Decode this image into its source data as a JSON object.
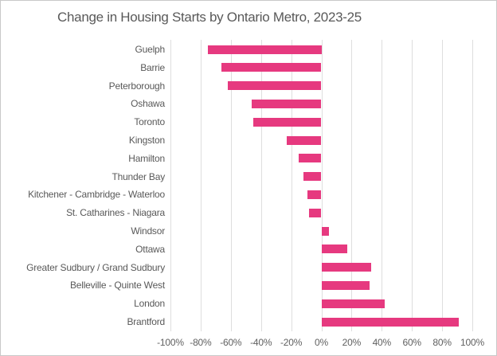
{
  "chart_data": {
    "type": "bar",
    "orientation": "horizontal",
    "title": "Change in Housing Starts by Ontario Metro, 2023-25",
    "categories": [
      "Guelph",
      "Barrie",
      "Peterborough",
      "Oshawa",
      "Toronto",
      "Kingston",
      "Hamilton",
      "Thunder Bay",
      "Kitchener - Cambridge - Waterloo",
      "St. Catharines - Niagara",
      "Windsor",
      "Ottawa",
      "Greater Sudbury / Grand Sudbury",
      "Belleville - Quinte West",
      "London",
      "Brantford"
    ],
    "values": [
      -75,
      -66,
      -62,
      -46,
      -45,
      -23,
      -15,
      -12,
      -9,
      -8,
      5,
      17,
      33,
      32,
      42,
      91
    ],
    "value_unit": "%",
    "xlabel": "",
    "ylabel": "",
    "xlim": [
      -100,
      100
    ],
    "x_tick_step": 20,
    "x_tick_labels": [
      "-100%",
      "-80%",
      "-60%",
      "-40%",
      "-20%",
      "0%",
      "20%",
      "40%",
      "60%",
      "80%",
      "100%"
    ],
    "grid": "vertical-gridlines-only",
    "legend": "none",
    "colors": {
      "bar": "#E6397F",
      "title_text": "#595959",
      "axis_text": "#606060",
      "gridline": "#DEDEDE",
      "background": "#FFFFFF",
      "border": "#C9C9C9"
    }
  }
}
